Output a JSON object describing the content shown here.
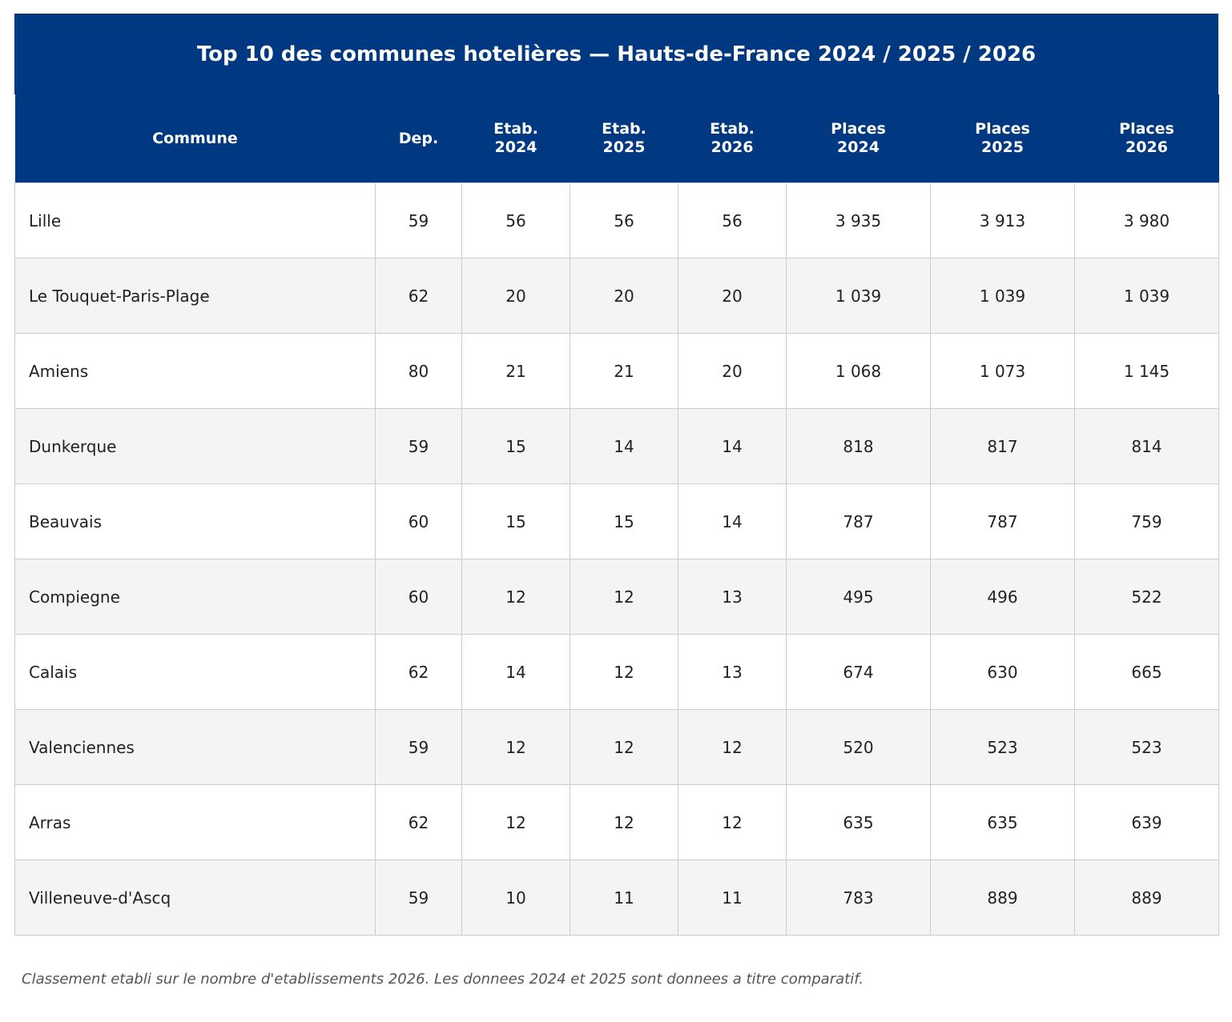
{
  "title": "Top 10 des communes hotelières — Hauts-de-France 2024 / 2025 / 2026",
  "table": {
    "headers": [
      "Commune",
      "Dep.",
      "Etab.\n2024",
      "Etab.\n2025",
      "Etab.\n2026",
      "Places\n2024",
      "Places\n2025",
      "Places\n2026"
    ],
    "rows": [
      [
        "Lille",
        "59",
        "56",
        "56",
        "56",
        "3 935",
        "3 913",
        "3 980"
      ],
      [
        "Le Touquet-Paris-Plage",
        "62",
        "20",
        "20",
        "20",
        "1 039",
        "1 039",
        "1 039"
      ],
      [
        "Amiens",
        "80",
        "21",
        "21",
        "20",
        "1 068",
        "1 073",
        "1 145"
      ],
      [
        "Dunkerque",
        "59",
        "15",
        "14",
        "14",
        "818",
        "817",
        "814"
      ],
      [
        "Beauvais",
        "60",
        "15",
        "15",
        "14",
        "787",
        "787",
        "759"
      ],
      [
        "Compiegne",
        "60",
        "12",
        "12",
        "13",
        "495",
        "496",
        "522"
      ],
      [
        "Calais",
        "62",
        "14",
        "12",
        "13",
        "674",
        "630",
        "665"
      ],
      [
        "Valenciennes",
        "59",
        "12",
        "12",
        "12",
        "520",
        "523",
        "523"
      ],
      [
        "Arras",
        "62",
        "12",
        "12",
        "12",
        "635",
        "635",
        "639"
      ],
      [
        "Villeneuve-d'Ascq",
        "59",
        "10",
        "11",
        "11",
        "783",
        "889",
        "889"
      ]
    ]
  },
  "footnote": "Classement etabli sur le nombre d'etablissements 2026. Les donnees 2024 et 2025 sont donnees a titre comparatif."
}
